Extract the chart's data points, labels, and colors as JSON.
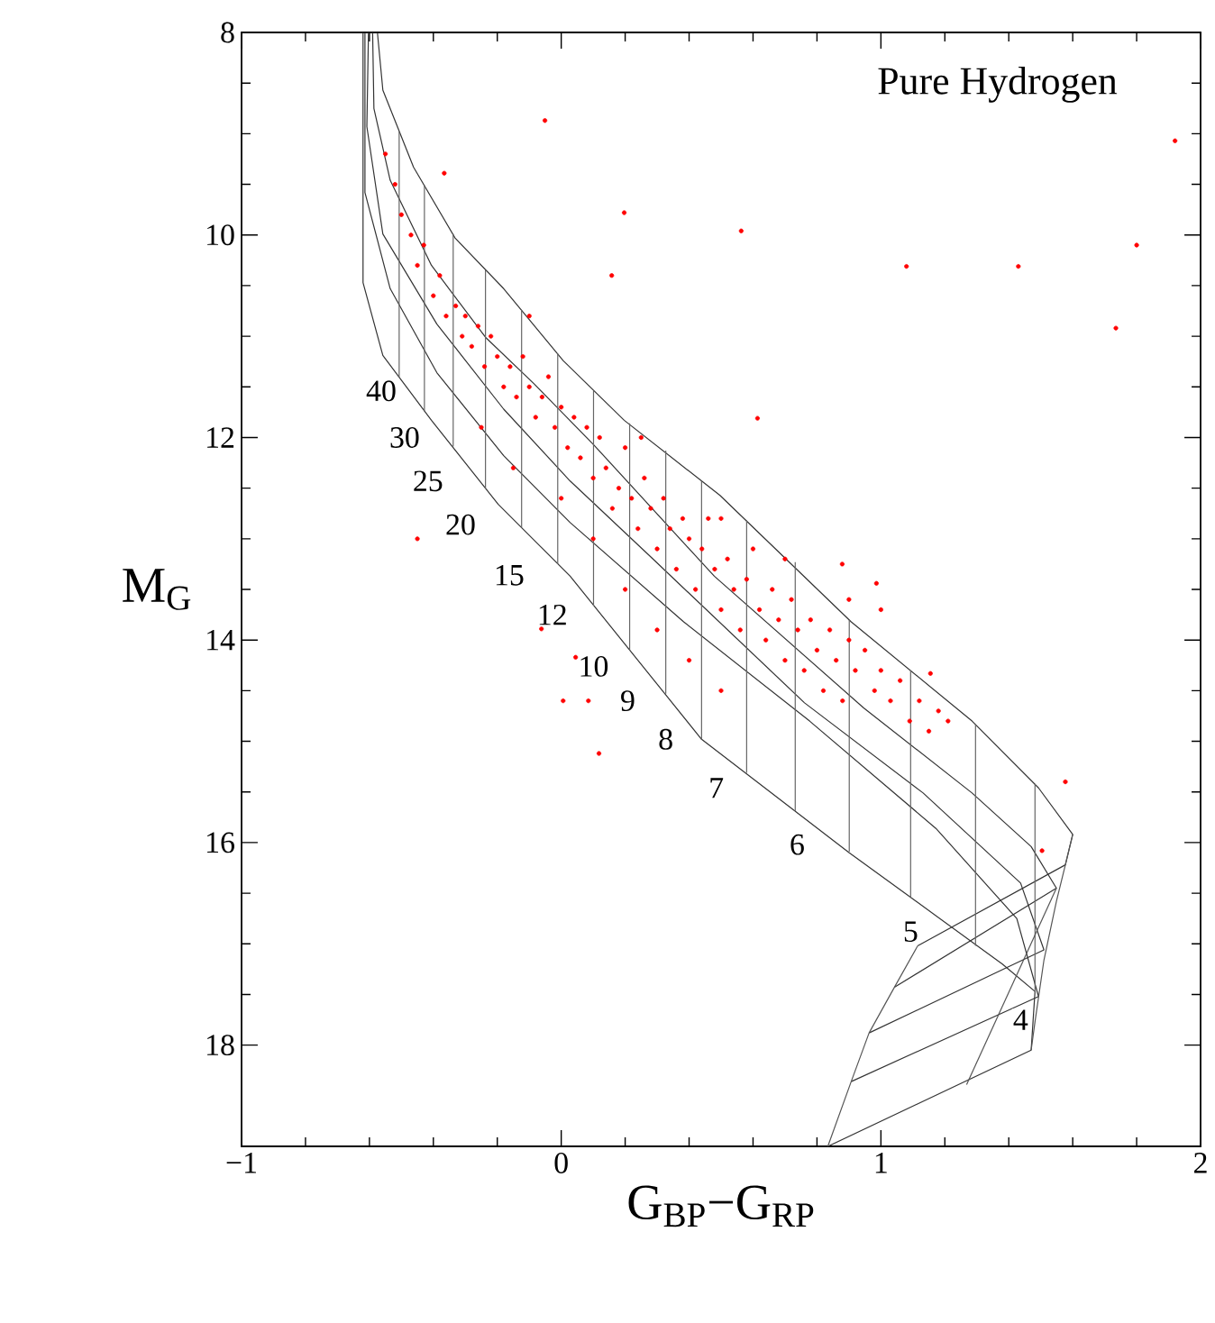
{
  "chart_data": {
    "type": "line",
    "xlabel": "G$_{BP}$−G$_{RP}$",
    "ylabel": "M$_{G}$",
    "xlim": [
      -1,
      2
    ],
    "ylim": [
      19,
      8
    ],
    "xticks": [
      {
        "value": -1,
        "label": "−1"
      },
      0,
      1,
      2
    ],
    "yticks": [
      8,
      10,
      12,
      14,
      16,
      18
    ],
    "annotations": [
      "Pure Hydrogen",
      {
        "text": "40",
        "x": -0.563,
        "y": 11.54
      },
      {
        "text": "30",
        "x": -0.49,
        "y": 12.0
      },
      {
        "text": "25",
        "x": -0.417,
        "y": 12.43
      },
      {
        "text": "20",
        "x": -0.315,
        "y": 12.86
      },
      {
        "text": "15",
        "x": -0.163,
        "y": 13.36
      },
      {
        "text": "12",
        "x": -0.028,
        "y": 13.75
      },
      {
        "text": "10",
        "x": 0.101,
        "y": 14.26
      },
      {
        "text": "9",
        "x": 0.208,
        "y": 14.6
      },
      {
        "text": "8",
        "x": 0.327,
        "y": 14.98
      },
      {
        "text": "7",
        "x": 0.485,
        "y": 15.46
      },
      {
        "text": "6",
        "x": 0.738,
        "y": 16.02
      },
      {
        "text": "5",
        "x": 1.093,
        "y": 16.88
      },
      {
        "text": "4",
        "x": 1.437,
        "y": 17.75
      }
    ],
    "series": [
      {
        "color": "#333333",
        "x": [
          -0.575,
          -0.558,
          -0.462,
          -0.332,
          -0.18,
          0.006,
          0.197,
          0.496,
          0.907,
          1.285,
          1.493,
          1.6,
          1.577,
          1.115
        ],
        "values": [
          8.0,
          8.57,
          9.33,
          10.03,
          10.53,
          11.24,
          11.83,
          12.57,
          13.82,
          14.8,
          15.46,
          15.92,
          16.22,
          17.02
        ]
      },
      {
        "color": "#333333",
        "x": [
          -0.59,
          -0.586,
          -0.535,
          -0.406,
          -0.237,
          -0.085,
          0.101,
          0.479,
          0.946,
          1.285,
          1.47,
          1.549,
          1.042
        ],
        "values": [
          8.0,
          8.75,
          9.46,
          10.3,
          11.01,
          11.47,
          12.07,
          13.37,
          14.67,
          15.51,
          16.04,
          16.45,
          17.43
        ]
      },
      {
        "color": "#333333",
        "x": [
          -0.603,
          -0.608,
          -0.558,
          -0.389,
          -0.18,
          0.028,
          0.287,
          0.761,
          1.132,
          1.437,
          1.51,
          0.963
        ],
        "values": [
          8.0,
          8.93,
          9.99,
          10.88,
          11.72,
          12.43,
          13.2,
          14.62,
          15.51,
          16.4,
          17.06,
          17.88
        ]
      },
      {
        "color": "#333333",
        "x": [
          -0.614,
          -0.614,
          -0.535,
          -0.389,
          -0.18,
          0.028,
          0.383,
          0.777,
          1.172,
          1.425,
          1.493,
          0.907
        ],
        "values": [
          8.0,
          9.58,
          10.53,
          11.36,
          12.18,
          12.84,
          13.82,
          14.8,
          15.86,
          16.75,
          17.52,
          18.36
        ]
      },
      {
        "color": "#333333",
        "x": [
          -0.62,
          -0.62,
          -0.558,
          -0.406,
          -0.197,
          0.028,
          0.439,
          0.901,
          1.38,
          1.482,
          1.47,
          0.834
        ],
        "values": [
          8.0,
          10.47,
          11.19,
          11.83,
          12.66,
          13.37,
          14.98,
          16.1,
          17.2,
          17.47,
          18.05,
          19.0
        ]
      },
      {
        "type": "line",
        "color": "#666666",
        "x": [
          -0.507,
          -0.507
        ],
        "values": [
          11.4,
          8.98
        ]
      },
      {
        "type": "line",
        "color": "#666666",
        "x": [
          -0.428,
          -0.428
        ],
        "values": [
          11.74,
          9.51
        ]
      },
      {
        "type": "line",
        "color": "#666666",
        "x": [
          -0.338,
          -0.338
        ],
        "values": [
          12.09,
          9.99
        ]
      },
      {
        "type": "line",
        "color": "#666666",
        "x": [
          -0.237,
          -0.237
        ],
        "values": [
          12.5,
          10.35
        ]
      },
      {
        "type": "line",
        "color": "#666666",
        "x": [
          -0.124,
          -0.124
        ],
        "values": [
          12.89,
          10.74
        ]
      },
      {
        "type": "line",
        "color": "#666666",
        "x": [
          -0.011,
          -0.011
        ],
        "values": [
          13.25,
          11.17
        ]
      },
      {
        "type": "line",
        "color": "#666666",
        "x": [
          0.101,
          0.101
        ],
        "values": [
          13.66,
          11.54
        ]
      },
      {
        "type": "line",
        "color": "#666666",
        "x": [
          0.214,
          0.214
        ],
        "values": [
          14.1,
          11.86
        ]
      },
      {
        "type": "line",
        "color": "#666666",
        "x": [
          0.327,
          0.327
        ],
        "values": [
          14.53,
          12.13
        ]
      },
      {
        "type": "line",
        "color": "#666666",
        "x": [
          0.439,
          0.439
        ],
        "values": [
          14.98,
          12.43
        ]
      },
      {
        "type": "line",
        "color": "#666666",
        "x": [
          0.58,
          0.58
        ],
        "values": [
          15.31,
          12.82
        ]
      },
      {
        "type": "line",
        "color": "#666666",
        "x": [
          0.732,
          0.732
        ],
        "values": [
          15.69,
          13.23
        ]
      },
      {
        "type": "line",
        "color": "#666666",
        "x": [
          0.901,
          0.901
        ],
        "values": [
          16.09,
          13.8
        ]
      },
      {
        "type": "line",
        "color": "#666666",
        "x": [
          1.093,
          1.093
        ],
        "values": [
          16.54,
          14.3
        ]
      },
      {
        "type": "line",
        "color": "#666666",
        "x": [
          1.296,
          1.296
        ],
        "values": [
          17.02,
          14.83
        ]
      },
      {
        "type": "line",
        "color": "#666666",
        "x": [
          1.482,
          1.482
        ],
        "values": [
          17.47,
          15.42
        ]
      },
      {
        "type": "line",
        "color": "#555555",
        "x": [
          1.115,
          1.042,
          0.963,
          0.907,
          0.834
        ],
        "values": [
          17.02,
          17.43,
          17.88,
          18.36,
          19.0
        ]
      },
      {
        "type": "line",
        "color": "#555555",
        "x": [
          1.549,
          1.268
        ],
        "values": [
          16.45,
          18.39
        ]
      },
      {
        "type": "line",
        "color": "#555555",
        "x": [
          1.6,
          1.577,
          1.549,
          1.51,
          1.482,
          1.47
        ],
        "values": [
          15.92,
          16.22,
          16.58,
          17.16,
          17.77,
          18.05
        ]
      },
      {
        "type": "scatter",
        "marker": "circle",
        "color": "#ff0000",
        "x": [
          -0.55,
          -0.52,
          -0.5,
          -0.47,
          -0.45,
          -0.43,
          -0.4,
          -0.38,
          -0.36,
          -0.33,
          -0.31,
          -0.3,
          -0.28,
          -0.26,
          -0.24,
          -0.22,
          -0.2,
          -0.18,
          -0.16,
          -0.14,
          -0.12,
          -0.1,
          -0.08,
          -0.06,
          -0.04,
          -0.02,
          0.0,
          0.02,
          0.04,
          0.06,
          0.08,
          0.1,
          0.12,
          0.14,
          0.16,
          0.18,
          0.2,
          0.22,
          0.24,
          0.26,
          0.28,
          0.3,
          0.32,
          0.34,
          0.36,
          0.38,
          0.4,
          0.42,
          0.44,
          0.46,
          0.48,
          0.5,
          0.52,
          0.54,
          0.56,
          0.58,
          0.6,
          0.62,
          0.64,
          0.66,
          0.68,
          0.7,
          0.72,
          0.74,
          0.76,
          0.78,
          0.8,
          0.82,
          0.84,
          0.86,
          0.88,
          0.9,
          0.92,
          0.95,
          0.98,
          1.0,
          1.03,
          1.06,
          1.09,
          1.12,
          1.15,
          1.18,
          1.21,
          -0.25,
          -0.15,
          0.0,
          0.1,
          0.2,
          0.3,
          0.4,
          0.5,
          0.25,
          0.5,
          0.7,
          0.9,
          1.0,
          -0.1,
          -0.051,
          1.08,
          1.43,
          1.8,
          1.92,
          1.735,
          0.563,
          0.614,
          0.197,
          -0.366,
          0.158,
          0.118,
          0.006,
          0.085,
          -0.062,
          0.045,
          -0.45,
          1.577,
          1.504,
          0.986,
          0.879,
          1.155
        ],
        "values": [
          9.2,
          9.5,
          9.8,
          10.0,
          10.3,
          10.1,
          10.6,
          10.4,
          10.8,
          10.7,
          11.0,
          10.8,
          11.1,
          10.9,
          11.3,
          11.0,
          11.2,
          11.5,
          11.3,
          11.6,
          11.2,
          11.5,
          11.8,
          11.6,
          11.4,
          11.9,
          11.7,
          12.1,
          11.8,
          12.2,
          11.9,
          12.4,
          12.0,
          12.3,
          12.7,
          12.5,
          12.1,
          12.6,
          12.9,
          12.4,
          12.7,
          13.1,
          12.6,
          12.9,
          13.3,
          12.8,
          13.0,
          13.5,
          13.1,
          12.8,
          13.3,
          13.7,
          13.2,
          13.5,
          13.9,
          13.4,
          13.1,
          13.7,
          14.0,
          13.5,
          13.8,
          14.2,
          13.6,
          13.9,
          14.3,
          13.8,
          14.1,
          14.5,
          13.9,
          14.2,
          14.6,
          14.0,
          14.3,
          14.1,
          14.5,
          14.3,
          14.6,
          14.4,
          14.8,
          14.6,
          14.9,
          14.7,
          14.8,
          11.9,
          12.3,
          12.6,
          13.0,
          13.5,
          13.9,
          14.2,
          14.5,
          12.0,
          12.8,
          13.2,
          13.6,
          13.7,
          10.8,
          8.87,
          10.31,
          10.31,
          10.1,
          9.07,
          10.92,
          9.96,
          11.81,
          9.78,
          9.39,
          10.4,
          15.12,
          14.6,
          14.6,
          13.89,
          14.17,
          13.0,
          15.4,
          16.08,
          13.44,
          13.25,
          14.33
        ]
      }
    ]
  }
}
